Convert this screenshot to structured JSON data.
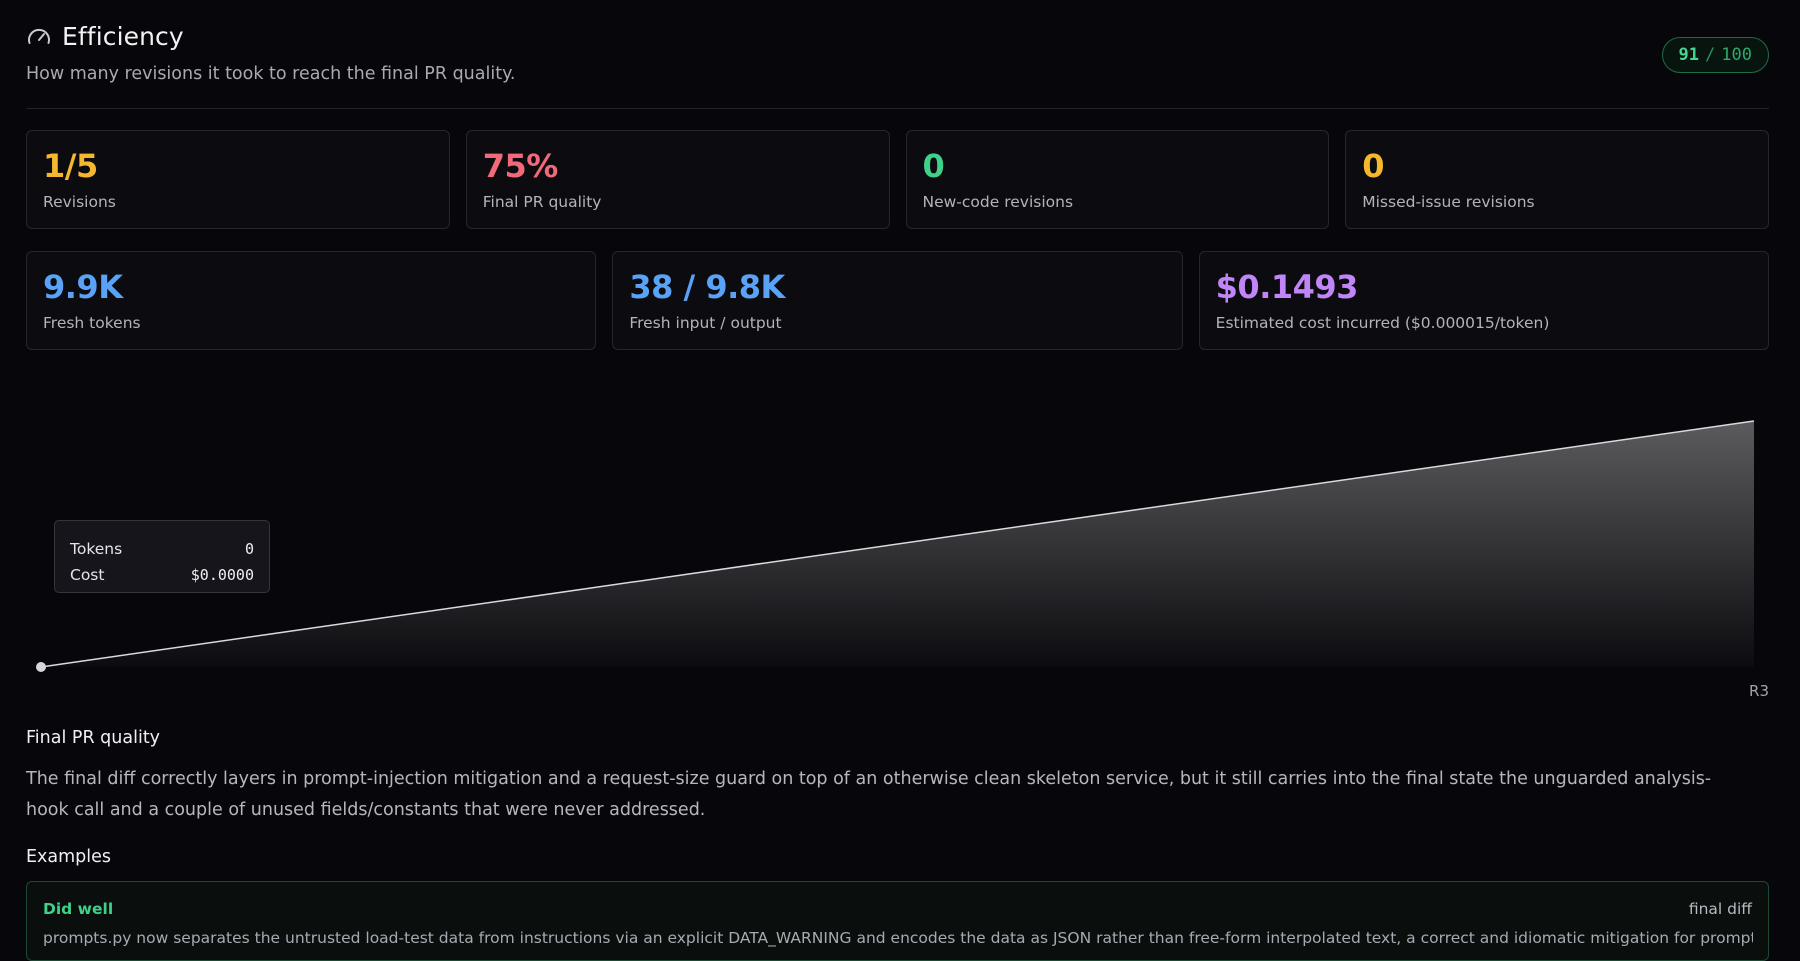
{
  "header": {
    "title": "Efficiency",
    "title_icon": "gauge-icon",
    "subtitle": "How many revisions it took to reach the final PR quality.",
    "score": {
      "value": "91",
      "separator": "/",
      "max": "100"
    }
  },
  "metrics_top": [
    {
      "value": "1/5",
      "label": "Revisions",
      "color": "#f5b72e"
    },
    {
      "value": "75%",
      "label": "Final PR quality",
      "color": "#f26a7a"
    },
    {
      "value": "0",
      "label": "New-code revisions",
      "color": "#3fd08a"
    },
    {
      "value": "0",
      "label": "Missed-issue revisions",
      "color": "#f5b72e"
    }
  ],
  "metrics_bottom": [
    {
      "value": "9.9K",
      "label": "Fresh tokens",
      "color": "#5aa2f5"
    },
    {
      "value": "38 / 9.8K",
      "label": "Fresh input / output",
      "color": "#5aa2f5"
    },
    {
      "value": "$0.1493",
      "label": "Estimated cost incurred ($0.000015/token)",
      "color": "#c085f7"
    }
  ],
  "chart_data": {
    "type": "area",
    "x": [
      "",
      "R3"
    ],
    "series": [
      {
        "values": [
          0,
          9900
        ]
      }
    ],
    "ylim": [
      0,
      9900
    ],
    "grid": false,
    "tooltip": {
      "rows": [
        {
          "label": "Tokens",
          "value": "0"
        },
        {
          "label": "Cost",
          "value": "$0.0000"
        }
      ]
    }
  },
  "final_quality": {
    "heading": "Final PR quality",
    "text": "The final diff correctly layers in prompt-injection mitigation and a request-size guard on top of an otherwise clean skeleton service, but it still carries into the final state the unguarded analysis-hook call and a couple of unused fields/constants that were never addressed."
  },
  "examples": {
    "heading": "Examples",
    "items": [
      {
        "kind": "Did well",
        "scope": "final diff",
        "text": "prompts.py now separates the untrusted load-test data from instructions via an explicit DATA_WARNING and encodes the data as JSON rather than free-form interpolated text, a correct and idiomatic mitigation for prompt injection."
      }
    ]
  }
}
